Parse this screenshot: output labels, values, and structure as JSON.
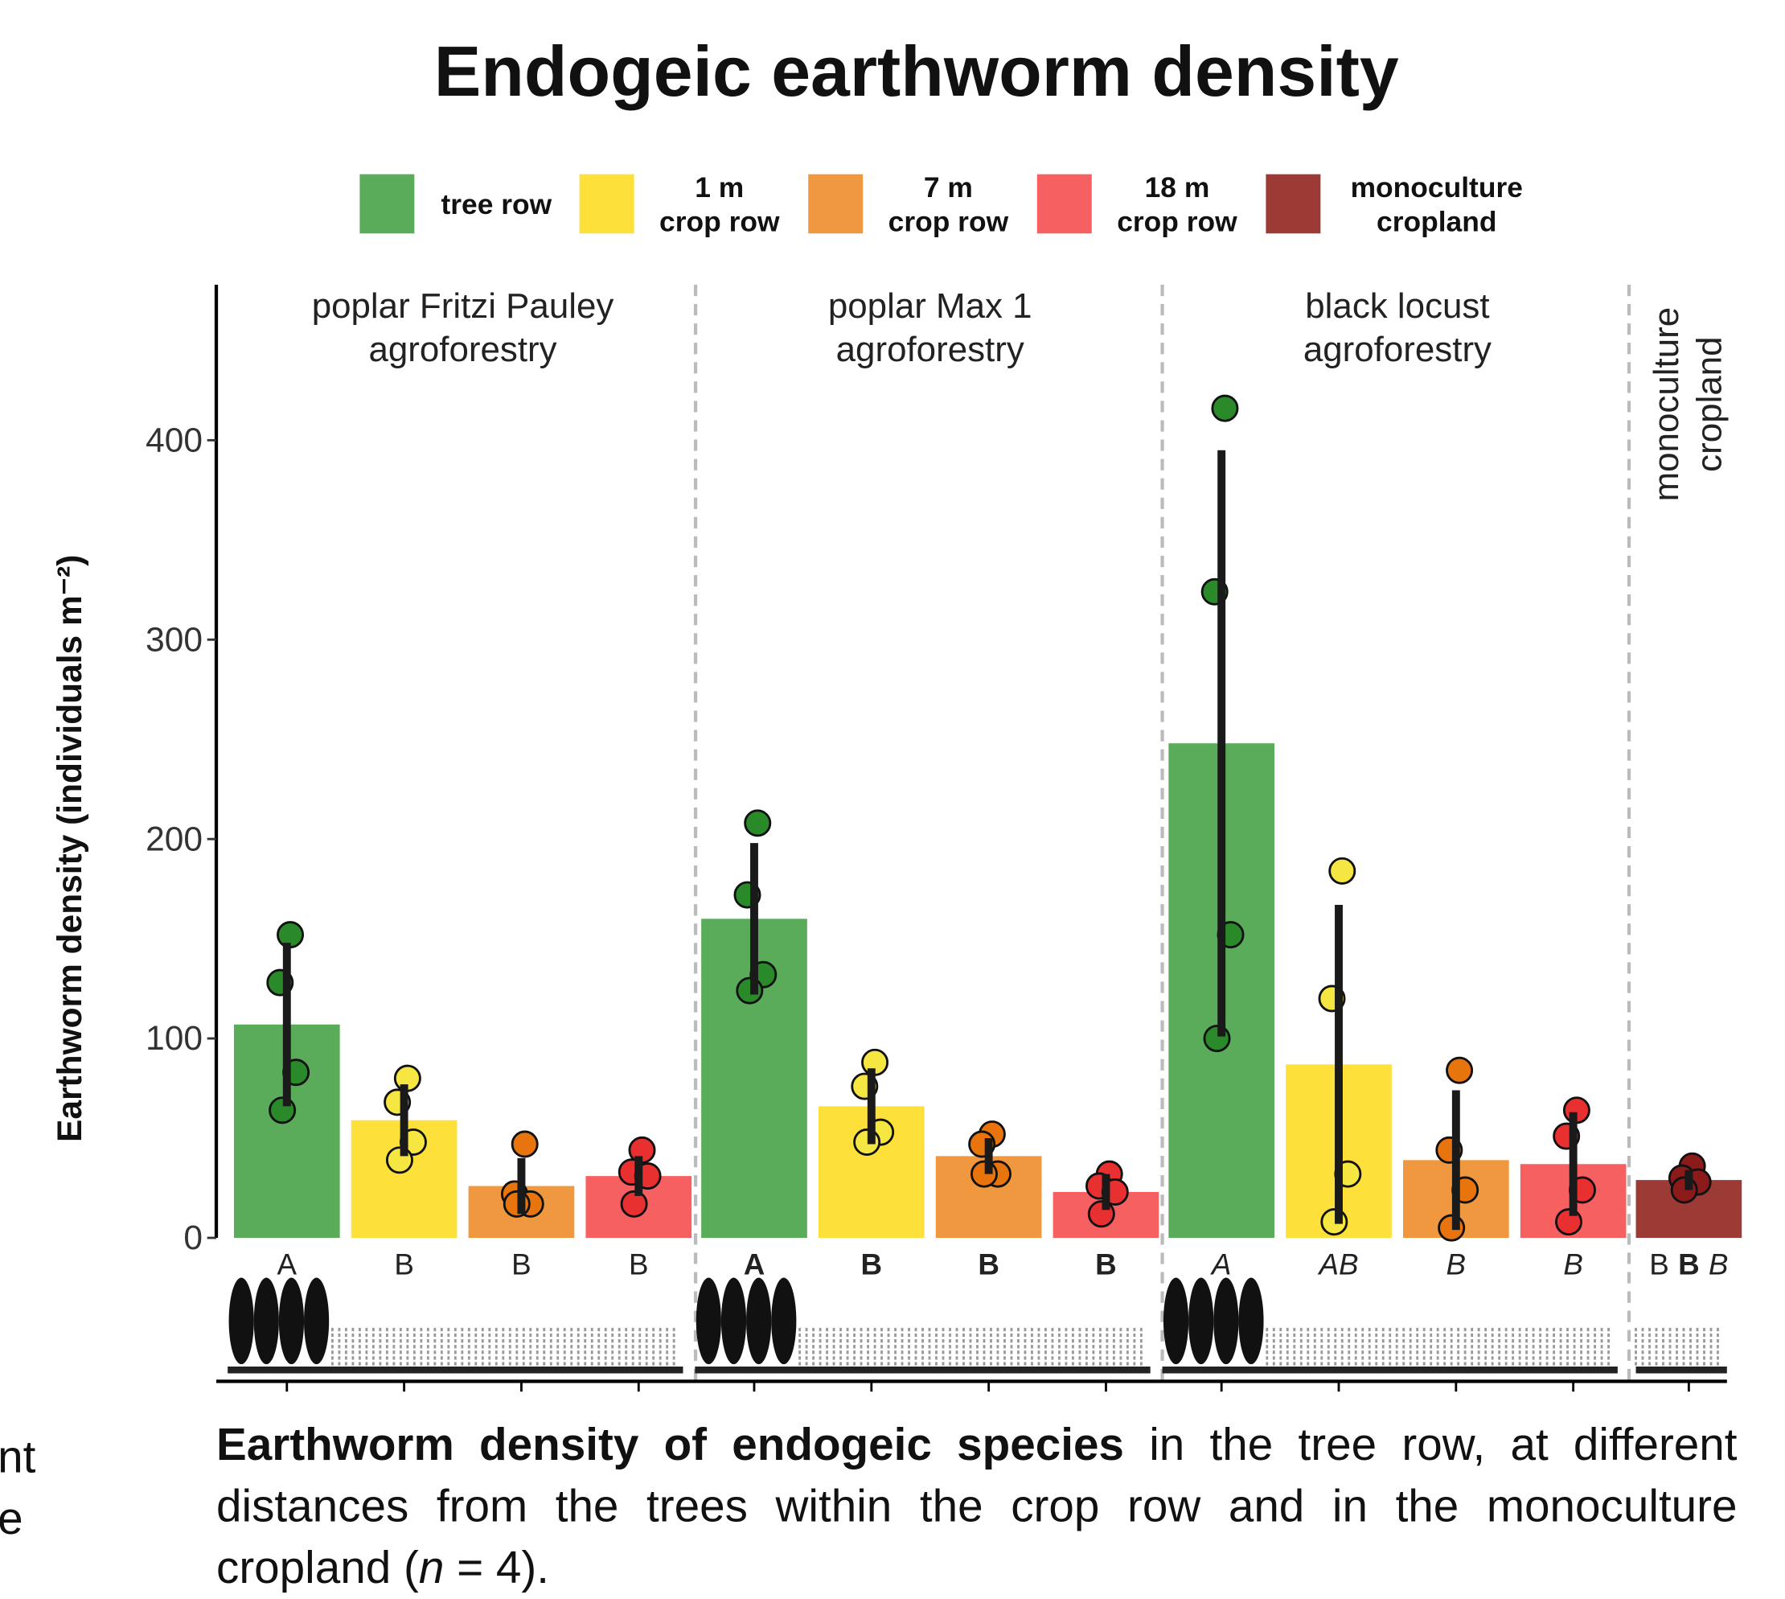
{
  "chart_data": {
    "type": "bar",
    "title": "Endogeic earthworm density",
    "y_label": "Earthworm density (individuals m⁻²)",
    "categories": [
      "poplar Fritzi Pauley\nagroforestry",
      "poplar Max 1\nagroforestry",
      "black locust\nagroforestry",
      "monoculture\ncropland"
    ],
    "ylim": [
      0,
      478
    ],
    "yticks": [
      0,
      100,
      200,
      300,
      400
    ],
    "series": [
      {
        "name": "tree row",
        "color": "#5aab5a",
        "point_color": "#2a8a2a",
        "values": [
          107,
          160,
          248,
          null
        ],
        "errors": [
          41,
          38,
          147,
          null
        ],
        "points": [
          [
            152,
            128,
            83,
            64
          ],
          [
            208,
            172,
            132,
            124
          ],
          [
            416,
            324,
            152,
            100
          ],
          null
        ],
        "letters": [
          "A",
          "A",
          "A",
          null
        ]
      },
      {
        "name": "1 m\ncrop row",
        "color": "#fde03a",
        "point_color": "#f5e642",
        "values": [
          59,
          66,
          87,
          null
        ],
        "errors": [
          18,
          19,
          80,
          null
        ],
        "points": [
          [
            80,
            68,
            48,
            39
          ],
          [
            88,
            76,
            53,
            48
          ],
          [
            184,
            120,
            32,
            8
          ],
          null
        ],
        "letters": [
          "B",
          "B",
          "AB",
          null
        ]
      },
      {
        "name": "7 m\ncrop row",
        "color": "#f0983f",
        "point_color": "#e8740e",
        "values": [
          26,
          41,
          39,
          null
        ],
        "errors": [
          14,
          9,
          35,
          null
        ],
        "points": [
          [
            47,
            22,
            17,
            17
          ],
          [
            52,
            47,
            32,
            32
          ],
          [
            84,
            44,
            24,
            5
          ],
          null
        ],
        "letters": [
          "B",
          "B",
          "B",
          null
        ]
      },
      {
        "name": "18 m\ncrop row",
        "color": "#f76060",
        "point_color": "#e83030",
        "values": [
          31,
          23,
          37,
          null
        ],
        "errors": [
          10,
          9,
          26,
          null
        ],
        "points": [
          [
            44,
            33,
            31,
            17
          ],
          [
            32,
            26,
            23,
            12
          ],
          [
            64,
            51,
            24,
            8
          ],
          null
        ],
        "letters": [
          "B",
          "B",
          "B",
          null
        ]
      },
      {
        "name": "monoculture\ncropland",
        "color": "#9c3a36",
        "point_color": "#8b1a1a",
        "values": [
          null,
          null,
          null,
          29
        ],
        "errors": [
          null,
          null,
          null,
          5
        ],
        "points": [
          null,
          null,
          null,
          [
            36,
            30,
            28,
            24
          ]
        ],
        "letters": [
          null,
          null,
          null,
          [
            "B",
            "B",
            "B"
          ]
        ]
      }
    ],
    "caption": [
      "Earthworm density of endogeic species",
      " in the tree row, at different distances from the trees within the crop row and in the monoculture cropland (",
      "n",
      " = 4)."
    ],
    "left_fragments": [
      "nt",
      "e"
    ]
  }
}
